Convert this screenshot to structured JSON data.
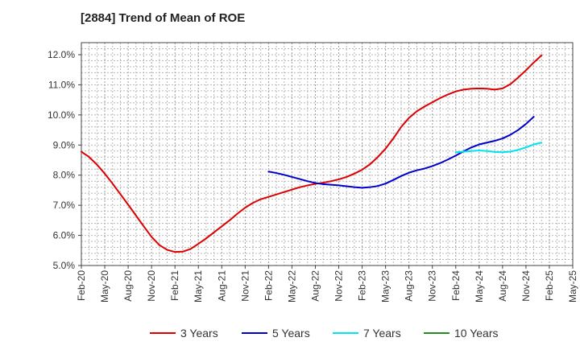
{
  "chart_data": {
    "type": "line",
    "title": "[2884]  Trend of Mean of ROE",
    "xlabel": "",
    "ylabel": "",
    "x_ticks": [
      "Feb-20",
      "May-20",
      "Aug-20",
      "Nov-20",
      "Feb-21",
      "May-21",
      "Aug-21",
      "Nov-21",
      "Feb-22",
      "May-22",
      "Aug-22",
      "Nov-22",
      "Feb-23",
      "May-23",
      "Aug-23",
      "Nov-23",
      "Feb-24",
      "May-24",
      "Aug-24",
      "Nov-24",
      "Feb-25",
      "May-25"
    ],
    "y_ticks": [
      "5.0%",
      "6.0%",
      "7.0%",
      "8.0%",
      "9.0%",
      "10.0%",
      "11.0%",
      "12.0%"
    ],
    "ylim": [
      5.0,
      12.4
    ],
    "y_unit": "%",
    "grid": true,
    "legend_position": "bottom",
    "series": [
      {
        "name": "3 Years",
        "color": "#dd0000",
        "points": [
          [
            "Feb-20",
            8.78
          ],
          [
            "Mar-20",
            8.6
          ],
          [
            "Apr-20",
            8.35
          ],
          [
            "May-20",
            8.05
          ],
          [
            "Jun-20",
            7.72
          ],
          [
            "Jul-20",
            7.37
          ],
          [
            "Aug-20",
            7.02
          ],
          [
            "Sep-20",
            6.66
          ],
          [
            "Oct-20",
            6.3
          ],
          [
            "Nov-20",
            5.95
          ],
          [
            "Dec-20",
            5.68
          ],
          [
            "Jan-21",
            5.52
          ],
          [
            "Feb-21",
            5.45
          ],
          [
            "Mar-21",
            5.46
          ],
          [
            "Apr-21",
            5.55
          ],
          [
            "May-21",
            5.72
          ],
          [
            "Jun-21",
            5.9
          ],
          [
            "Jul-21",
            6.1
          ],
          [
            "Aug-21",
            6.3
          ],
          [
            "Sep-21",
            6.5
          ],
          [
            "Oct-21",
            6.72
          ],
          [
            "Nov-21",
            6.92
          ],
          [
            "Dec-21",
            7.08
          ],
          [
            "Jan-22",
            7.2
          ],
          [
            "Feb-22",
            7.28
          ],
          [
            "Mar-22",
            7.36
          ],
          [
            "Apr-22",
            7.44
          ],
          [
            "May-22",
            7.52
          ],
          [
            "Jun-22",
            7.6
          ],
          [
            "Jul-22",
            7.66
          ],
          [
            "Aug-22",
            7.71
          ],
          [
            "Sep-22",
            7.75
          ],
          [
            "Oct-22",
            7.8
          ],
          [
            "Nov-22",
            7.86
          ],
          [
            "Dec-22",
            7.94
          ],
          [
            "Jan-23",
            8.05
          ],
          [
            "Feb-23",
            8.18
          ],
          [
            "Mar-23",
            8.36
          ],
          [
            "Apr-23",
            8.6
          ],
          [
            "May-23",
            8.88
          ],
          [
            "Jun-23",
            9.22
          ],
          [
            "Jul-23",
            9.6
          ],
          [
            "Aug-23",
            9.9
          ],
          [
            "Sep-23",
            10.12
          ],
          [
            "Oct-23",
            10.28
          ],
          [
            "Nov-23",
            10.42
          ],
          [
            "Dec-23",
            10.56
          ],
          [
            "Jan-24",
            10.68
          ],
          [
            "Feb-24",
            10.78
          ],
          [
            "Mar-24",
            10.84
          ],
          [
            "Apr-24",
            10.87
          ],
          [
            "May-24",
            10.88
          ],
          [
            "Jun-24",
            10.87
          ],
          [
            "Jul-24",
            10.84
          ],
          [
            "Aug-24",
            10.88
          ],
          [
            "Sep-24",
            11.02
          ],
          [
            "Oct-24",
            11.24
          ],
          [
            "Nov-24",
            11.48
          ],
          [
            "Dec-24",
            11.74
          ],
          [
            "Jan-25",
            11.98
          ]
        ]
      },
      {
        "name": "5 Years",
        "color": "#0000cc",
        "points": [
          [
            "Feb-22",
            8.12
          ],
          [
            "Mar-22",
            8.07
          ],
          [
            "Apr-22",
            8.01
          ],
          [
            "May-22",
            7.94
          ],
          [
            "Jun-22",
            7.87
          ],
          [
            "Jul-22",
            7.8
          ],
          [
            "Aug-22",
            7.74
          ],
          [
            "Sep-22",
            7.7
          ],
          [
            "Oct-22",
            7.68
          ],
          [
            "Nov-22",
            7.66
          ],
          [
            "Dec-22",
            7.63
          ],
          [
            "Jan-23",
            7.6
          ],
          [
            "Feb-23",
            7.58
          ],
          [
            "Mar-23",
            7.6
          ],
          [
            "Apr-23",
            7.64
          ],
          [
            "May-23",
            7.72
          ],
          [
            "Jun-23",
            7.84
          ],
          [
            "Jul-23",
            7.97
          ],
          [
            "Aug-23",
            8.08
          ],
          [
            "Sep-23",
            8.16
          ],
          [
            "Oct-23",
            8.22
          ],
          [
            "Nov-23",
            8.3
          ],
          [
            "Dec-23",
            8.4
          ],
          [
            "Jan-24",
            8.52
          ],
          [
            "Feb-24",
            8.65
          ],
          [
            "Mar-24",
            8.79
          ],
          [
            "Apr-24",
            8.92
          ],
          [
            "May-24",
            9.02
          ],
          [
            "Jun-24",
            9.08
          ],
          [
            "Jul-24",
            9.14
          ],
          [
            "Aug-24",
            9.22
          ],
          [
            "Sep-24",
            9.34
          ],
          [
            "Oct-24",
            9.5
          ],
          [
            "Nov-24",
            9.7
          ],
          [
            "Dec-24",
            9.94
          ]
        ]
      },
      {
        "name": "7 Years",
        "color": "#00e5ee",
        "points": [
          [
            "Feb-24",
            8.76
          ],
          [
            "Mar-24",
            8.78
          ],
          [
            "Apr-24",
            8.8
          ],
          [
            "May-24",
            8.82
          ],
          [
            "Jun-24",
            8.8
          ],
          [
            "Jul-24",
            8.77
          ],
          [
            "Aug-24",
            8.76
          ],
          [
            "Sep-24",
            8.78
          ],
          [
            "Oct-24",
            8.84
          ],
          [
            "Nov-24",
            8.92
          ],
          [
            "Dec-24",
            9.02
          ],
          [
            "Jan-25",
            9.08
          ]
        ]
      },
      {
        "name": "10 Years",
        "color": "#228b22",
        "points": []
      }
    ]
  }
}
